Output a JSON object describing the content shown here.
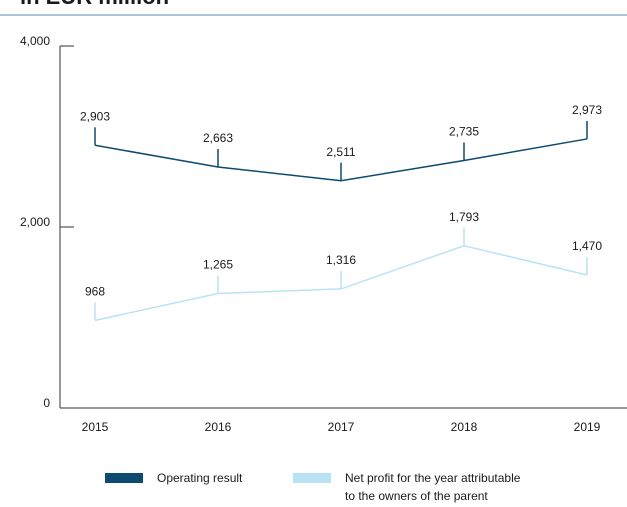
{
  "chart_data": {
    "type": "line",
    "title": "in EUR million",
    "categories": [
      "2015",
      "2016",
      "2017",
      "2018",
      "2019"
    ],
    "series": [
      {
        "name": "Operating result",
        "color": "#0d4a70",
        "values": [
          2903,
          2663,
          2511,
          2735,
          2973
        ],
        "value_labels": [
          "2,903",
          "2,663",
          "2,511",
          "2,735",
          "2,973"
        ]
      },
      {
        "name": "Net profit for the year attributable to the owners of the parent",
        "color": "#b9e3f5",
        "values": [
          968,
          1265,
          1316,
          1793,
          1470
        ],
        "value_labels": [
          "968",
          "1,265",
          "1,316",
          "1,793",
          "1,470"
        ]
      }
    ],
    "ylim": [
      0,
      4000
    ],
    "yticks": [
      0,
      {
        "value": 2000,
        "label": "2,000"
      },
      {
        "value": 4000,
        "label": "4,000"
      }
    ]
  }
}
